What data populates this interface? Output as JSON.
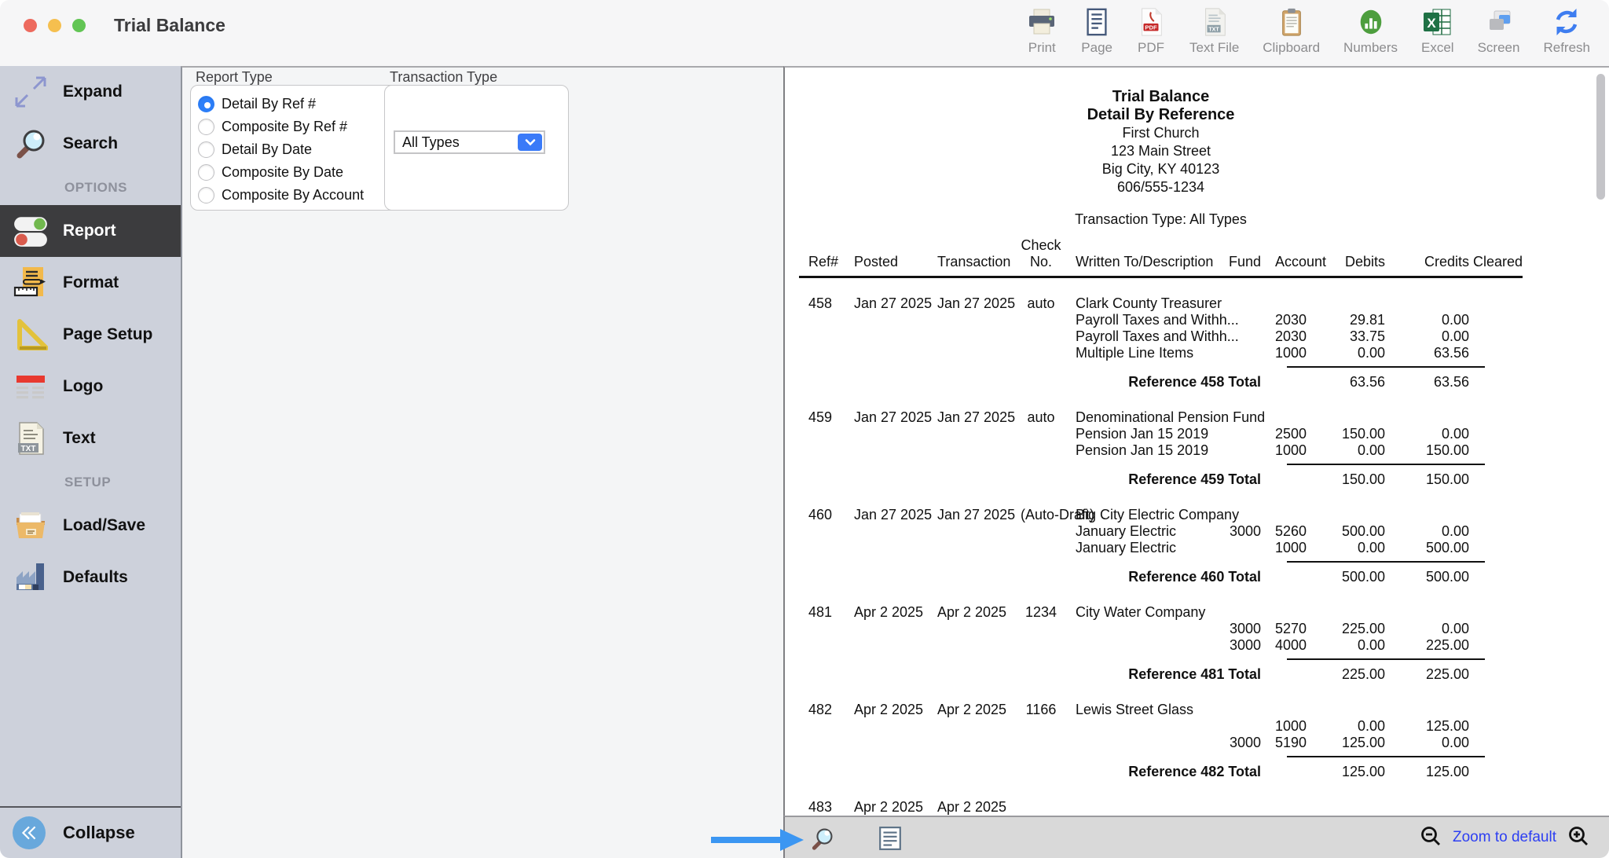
{
  "window": {
    "title": "Trial Balance"
  },
  "toolbar": {
    "items": [
      {
        "label": "Print"
      },
      {
        "label": "Page"
      },
      {
        "label": "PDF"
      },
      {
        "label": "Text File"
      },
      {
        "label": "Clipboard"
      },
      {
        "label": "Numbers"
      },
      {
        "label": "Excel"
      },
      {
        "label": "Screen"
      },
      {
        "label": "Refresh"
      }
    ]
  },
  "sidebar": {
    "expand": "Expand",
    "search": "Search",
    "options_header": "OPTIONS",
    "report": "Report",
    "format": "Format",
    "page_setup": "Page Setup",
    "logo": "Logo",
    "text": "Text",
    "setup_header": "SETUP",
    "load_save": "Load/Save",
    "defaults": "Defaults",
    "collapse": "Collapse"
  },
  "options": {
    "report_type": {
      "label": "Report Type",
      "options": [
        {
          "label": "Detail By Ref #",
          "selected": true
        },
        {
          "label": "Composite By Ref #"
        },
        {
          "label": "Detail By Date"
        },
        {
          "label": "Composite By Date"
        },
        {
          "label": "Composite By Account"
        }
      ]
    },
    "transaction_type": {
      "label": "Transaction Type",
      "selected_value": "All Types"
    }
  },
  "report": {
    "title": "Trial Balance",
    "subtitle": "Detail By Reference",
    "org_name": "First Church",
    "address": "123 Main Street",
    "city_line": "Big City, KY  40123",
    "phone": "606/555-1234",
    "filter_line": "Transaction Type: All Types",
    "columns": {
      "ref": "Ref#",
      "posted": "Posted",
      "transaction": "Transaction",
      "check_top": "Check",
      "check_bottom": "No.",
      "written": "Written To/Description",
      "fund": "Fund",
      "account": "Account",
      "debits": "Debits",
      "credits": "Credits",
      "cleared": "Cleared"
    },
    "blocks": [
      {
        "ref": "458",
        "posted": "Jan 27 2025",
        "transaction": "Jan 27 2025",
        "check_no": "auto",
        "written_to": "Clark County Treasurer",
        "lines": [
          {
            "desc": "Payroll Taxes and Withh...",
            "fund": "",
            "account": "2030",
            "debit": "29.81",
            "credit": "0.00"
          },
          {
            "desc": "Payroll Taxes and Withh...",
            "fund": "",
            "account": "2030",
            "debit": "33.75",
            "credit": "0.00"
          },
          {
            "desc": "Multiple Line Items",
            "fund": "",
            "account": "1000",
            "debit": "0.00",
            "credit": "63.56"
          }
        ],
        "total_label": "Reference 458 Total",
        "total_debit": "63.56",
        "total_credit": "63.56"
      },
      {
        "ref": "459",
        "posted": "Jan 27 2025",
        "transaction": "Jan 27 2025",
        "check_no": "auto",
        "written_to": "Denominational Pension Fund",
        "lines": [
          {
            "desc": "Pension Jan 15 2019",
            "fund": "",
            "account": "2500",
            "debit": "150.00",
            "credit": "0.00"
          },
          {
            "desc": "Pension Jan 15 2019",
            "fund": "",
            "account": "1000",
            "debit": "0.00",
            "credit": "150.00"
          }
        ],
        "total_label": "Reference 459 Total",
        "total_debit": "150.00",
        "total_credit": "150.00"
      },
      {
        "ref": "460",
        "posted": "Jan 27 2025",
        "transaction": "Jan 27 2025",
        "check_no": "(Auto-Draft)",
        "written_to": "Big City Electric Company",
        "lines": [
          {
            "desc": "January Electric",
            "fund": "3000",
            "account": "5260",
            "debit": "500.00",
            "credit": "0.00"
          },
          {
            "desc": "January Electric",
            "fund": "",
            "account": "1000",
            "debit": "0.00",
            "credit": "500.00"
          }
        ],
        "total_label": "Reference 460 Total",
        "total_debit": "500.00",
        "total_credit": "500.00"
      },
      {
        "ref": "481",
        "posted": "Apr 2 2025",
        "transaction": "Apr 2 2025",
        "check_no": "1234",
        "written_to": "City Water Company",
        "lines": [
          {
            "desc": "",
            "fund": "3000",
            "account": "5270",
            "debit": "225.00",
            "credit": "0.00"
          },
          {
            "desc": "",
            "fund": "3000",
            "account": "4000",
            "debit": "0.00",
            "credit": "225.00"
          }
        ],
        "total_label": "Reference 481 Total",
        "total_debit": "225.00",
        "total_credit": "225.00"
      },
      {
        "ref": "482",
        "posted": "Apr 2 2025",
        "transaction": "Apr 2 2025",
        "check_no": "1166",
        "written_to": "Lewis Street Glass",
        "lines": [
          {
            "desc": "",
            "fund": "",
            "account": "1000",
            "debit": "0.00",
            "credit": "125.00"
          },
          {
            "desc": "",
            "fund": "3000",
            "account": "5190",
            "debit": "125.00",
            "credit": "0.00"
          }
        ],
        "total_label": "Reference 482 Total",
        "total_debit": "125.00",
        "total_credit": "125.00"
      }
    ],
    "partial_block": {
      "ref": "483",
      "posted": "Apr 2 2025",
      "transaction": "Apr 2 2025"
    }
  },
  "bottom_bar": {
    "zoom_label": "Zoom to default"
  },
  "colors": {
    "accent_blue": "#3a7af8",
    "link_blue": "#2d3ff2",
    "arrow_blue": "#3b96f2",
    "sidebar_bg": "#cdd1db",
    "selected_row_bg": "#3c3c3e"
  }
}
